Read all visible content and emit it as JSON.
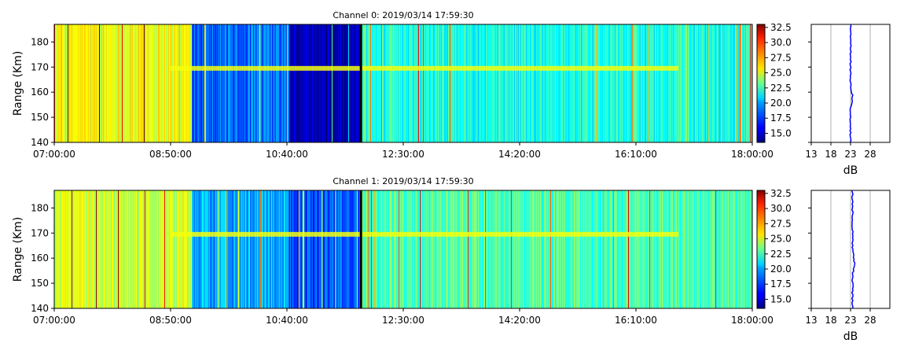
{
  "chart_data": [
    {
      "type": "heatmap",
      "title": "Channel 0: 2019/03/14 17:59:30",
      "xlabel": "",
      "ylabel": "Range (Km)",
      "x_ticks": [
        "07:00:00",
        "08:50:00",
        "10:40:00",
        "12:30:00",
        "14:20:00",
        "16:10:00",
        "18:00:00"
      ],
      "y_ticks": [
        140,
        150,
        160,
        170,
        180
      ],
      "xlim": [
        "07:00:00",
        "18:00:00"
      ],
      "ylim": [
        140,
        187
      ],
      "colorbar": {
        "ticks": [
          "15.0",
          "17.5",
          "20.0",
          "22.5",
          "25.0",
          "27.5",
          "30.0",
          "32.5"
        ],
        "range": [
          13.5,
          33.0
        ],
        "colormap": "jet"
      },
      "segments": [
        {
          "start": "07:00:00",
          "end": "09:10:00",
          "level_db": 25.5
        },
        {
          "start": "09:10:00",
          "end": "10:42:00",
          "level_db": 18.0
        },
        {
          "start": "10:42:00",
          "end": "11:50:00",
          "level_db": 14.2
        },
        {
          "start": "11:50:00",
          "end": "13:40:00",
          "level_db": 21.5
        },
        {
          "start": "13:40:00",
          "end": "18:00:00",
          "level_db": 21.3
        }
      ],
      "echo_layer": {
        "range_km": 169.5,
        "start": "08:50:00",
        "end": "16:50:00",
        "level_db": 25.5
      },
      "profile": {
        "xlabel": "dB",
        "x_ticks": [
          13,
          18,
          23,
          28
        ],
        "xlim": [
          13,
          33
        ],
        "mean_db": 23.0
      }
    },
    {
      "type": "heatmap",
      "title": "Channel 1: 2019/03/14 17:59:30",
      "xlabel": "",
      "ylabel": "Range (Km)",
      "x_ticks": [
        "07:00:00",
        "08:50:00",
        "10:40:00",
        "12:30:00",
        "14:20:00",
        "16:10:00",
        "18:00:00"
      ],
      "y_ticks": [
        140,
        150,
        160,
        170,
        180
      ],
      "xlim": [
        "07:00:00",
        "18:00:00"
      ],
      "ylim": [
        140,
        187
      ],
      "colorbar": {
        "ticks": [
          "15.0",
          "17.5",
          "20.0",
          "22.5",
          "25.0",
          "27.5",
          "30.0",
          "32.5"
        ],
        "range": [
          13.5,
          33.0
        ],
        "colormap": "jet"
      },
      "segments": [
        {
          "start": "07:00:00",
          "end": "09:10:00",
          "level_db": 24.8
        },
        {
          "start": "09:10:00",
          "end": "10:42:00",
          "level_db": 19.3
        },
        {
          "start": "10:42:00",
          "end": "11:50:00",
          "level_db": 17.6
        },
        {
          "start": "11:50:00",
          "end": "13:40:00",
          "level_db": 22.5
        },
        {
          "start": "13:40:00",
          "end": "18:00:00",
          "level_db": 22.3
        }
      ],
      "echo_layer": {
        "range_km": 169.5,
        "start": "08:50:00",
        "end": "16:50:00",
        "level_db": 25.5
      },
      "profile": {
        "xlabel": "dB",
        "x_ticks": [
          13,
          18,
          23,
          28
        ],
        "xlim": [
          13,
          33
        ],
        "mean_db": 23.5
      }
    }
  ]
}
